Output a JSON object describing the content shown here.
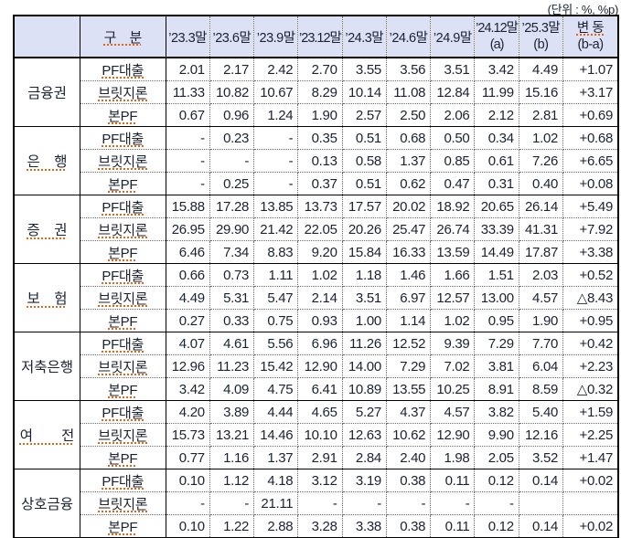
{
  "unit": {
    "prefix": "(단위 : %, ",
    "highlight": "%p",
    "suffix": ")"
  },
  "header": {
    "corner": "",
    "gubun": "구　분",
    "periods": [
      "’23.3말",
      "’23.6말",
      "’23.9말",
      "’23.12말",
      "’24.3말",
      "’24.6말",
      "’24.9말"
    ],
    "period_a": {
      "line1": "’24.12말",
      "line2": "(a)"
    },
    "period_b": {
      "line1": "’25.3말",
      "line2": "(b)"
    },
    "change": {
      "line1": "변 동",
      "line2": "(b-a)"
    }
  },
  "table": {
    "row_labels": [
      "PF대출",
      "브릿지론",
      "본PF"
    ],
    "groups": [
      {
        "sector": "금융권",
        "underlined": false,
        "rows": [
          [
            "2.01",
            "2.17",
            "2.42",
            "2.70",
            "3.55",
            "3.56",
            "3.51",
            "3.42",
            "4.49",
            "+1.07"
          ],
          [
            "11.33",
            "10.82",
            "10.67",
            "8.29",
            "10.14",
            "11.08",
            "12.84",
            "11.99",
            "15.16",
            "+3.17"
          ],
          [
            "0.67",
            "0.96",
            "1.24",
            "1.90",
            "2.57",
            "2.50",
            "2.06",
            "2.12",
            "2.81",
            "+0.69"
          ]
        ]
      },
      {
        "sector": "은　행",
        "underlined": true,
        "rows": [
          [
            "-",
            "0.23",
            "-",
            "0.35",
            "0.51",
            "0.68",
            "0.50",
            "0.34",
            "1.02",
            "+0.68"
          ],
          [
            "-",
            "-",
            "-",
            "0.13",
            "0.58",
            "1.37",
            "0.85",
            "0.61",
            "7.26",
            "+6.65"
          ],
          [
            "-",
            "0.25",
            "-",
            "0.37",
            "0.51",
            "0.62",
            "0.47",
            "0.31",
            "0.40",
            "+0.08"
          ]
        ]
      },
      {
        "sector": "증　권",
        "underlined": true,
        "rows": [
          [
            "15.88",
            "17.28",
            "13.85",
            "13.73",
            "17.57",
            "20.02",
            "18.92",
            "20.65",
            "26.14",
            "+5.49"
          ],
          [
            "26.95",
            "29.90",
            "21.42",
            "22.05",
            "20.26",
            "25.47",
            "26.74",
            "33.39",
            "41.31",
            "+7.92"
          ],
          [
            "6.46",
            "7.34",
            "8.83",
            "9.20",
            "15.84",
            "16.33",
            "13.59",
            "14.49",
            "17.87",
            "+3.38"
          ]
        ]
      },
      {
        "sector": "보　험",
        "underlined": true,
        "rows": [
          [
            "0.66",
            "0.73",
            "1.11",
            "1.02",
            "1.18",
            "1.46",
            "1.66",
            "1.51",
            "2.03",
            "+0.52"
          ],
          [
            "4.49",
            "5.31",
            "5.47",
            "2.14",
            "3.51",
            "6.97",
            "12.57",
            "13.00",
            "4.57",
            "△8.43"
          ],
          [
            "0.27",
            "0.33",
            "0.75",
            "0.93",
            "1.00",
            "1.14",
            "1.02",
            "0.95",
            "1.90",
            "+0.95"
          ]
        ]
      },
      {
        "sector": "저축은행",
        "underlined": false,
        "rows": [
          [
            "4.07",
            "4.61",
            "5.56",
            "6.96",
            "11.26",
            "12.52",
            "9.39",
            "7.29",
            "7.70",
            "+0.42"
          ],
          [
            "12.96",
            "11.23",
            "15.42",
            "12.90",
            "14.00",
            "7.29",
            "7.02",
            "3.81",
            "6.04",
            "+2.23"
          ],
          [
            "3.42",
            "4.09",
            "4.75",
            "6.41",
            "10.89",
            "13.55",
            "10.25",
            "8.91",
            "8.59",
            "△0.32"
          ]
        ]
      },
      {
        "sector": "여　　전",
        "underlined": true,
        "rows": [
          [
            "4.20",
            "3.89",
            "4.44",
            "4.65",
            "5.27",
            "4.37",
            "4.57",
            "3.82",
            "5.40",
            "+1.59"
          ],
          [
            "15.73",
            "13.21",
            "14.46",
            "10.10",
            "12.63",
            "10.62",
            "12.90",
            "9.90",
            "12.16",
            "+2.25"
          ],
          [
            "0.77",
            "1.16",
            "1.37",
            "2.91",
            "2.84",
            "2.40",
            "1.98",
            "2.05",
            "3.52",
            "+1.47"
          ]
        ]
      },
      {
        "sector": "상호금융",
        "underlined": false,
        "rows": [
          [
            "0.10",
            "1.12",
            "4.18",
            "3.12",
            "3.19",
            "0.38",
            "0.11",
            "0.12",
            "0.14",
            "+0.02"
          ],
          [
            "-",
            "-",
            "21.11",
            "-",
            "-",
            "-",
            "-",
            "-",
            "",
            ""
          ],
          [
            "0.10",
            "1.22",
            "2.88",
            "3.28",
            "3.38",
            "0.38",
            "0.11",
            "0.12",
            "0.14",
            "+0.02"
          ]
        ]
      }
    ]
  }
}
